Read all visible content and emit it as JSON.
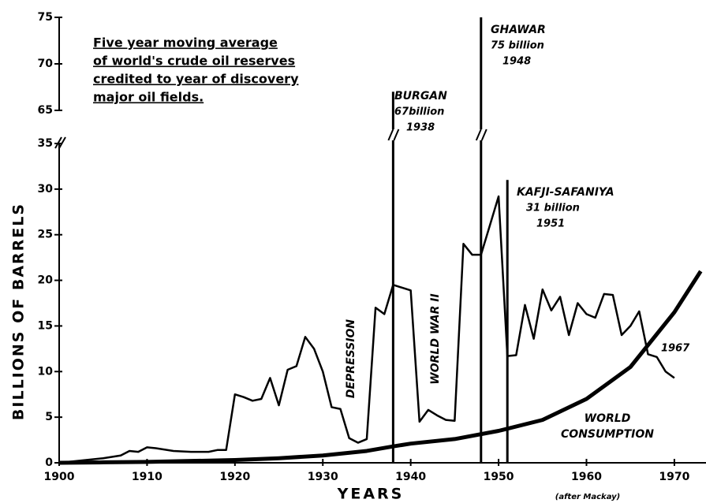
{
  "chart_data": {
    "type": "line",
    "title_lines": [
      "Five year moving average",
      "of world's crude oil reserves",
      "credited to year of discovery",
      "major oil fields."
    ],
    "xlabel": "YEARS",
    "ylabel": "BILLIONS OF BARRELS",
    "source": "(after Mackay)",
    "xlim": [
      1900,
      1973.6
    ],
    "xticks": [
      1900,
      1910,
      1920,
      1930,
      1940,
      1950,
      1960,
      1970
    ],
    "ylim": [
      0,
      35
    ],
    "yticks": [
      0,
      5,
      10,
      15,
      20,
      25,
      30,
      35
    ],
    "y_upper_lim": [
      65,
      75
    ],
    "y_upper_ticks": [
      65,
      70,
      75
    ],
    "color": "#000000",
    "series": [
      {
        "x": [
          1901,
          1905,
          1907,
          1908,
          1909,
          1910,
          1911,
          1913,
          1915,
          1917,
          1918,
          1919,
          1920,
          1921,
          1922,
          1923,
          1924,
          1925,
          1926,
          1927,
          1928,
          1929,
          1930,
          1931,
          1932,
          1933,
          1934,
          1935,
          1936,
          1937,
          1938,
          1939,
          1940,
          1941,
          1942,
          1943,
          1944,
          1945,
          1946,
          1947,
          1948,
          1949,
          1950,
          1951,
          1952,
          1953,
          1954,
          1955,
          1956,
          1957,
          1958,
          1959,
          1960,
          1961,
          1962,
          1963,
          1964,
          1965,
          1966,
          1967,
          1968,
          1969,
          1970
        ],
        "values": [
          0.1,
          0.5,
          0.8,
          1.3,
          1.2,
          1.7,
          1.6,
          1.3,
          1.2,
          1.2,
          1.4,
          1.4,
          7.5,
          7.2,
          6.8,
          7.0,
          9.3,
          6.3,
          10.2,
          10.6,
          13.8,
          12.5,
          10.0,
          6.1,
          5.9,
          2.7,
          2.2,
          2.6,
          17.0,
          16.3,
          19.5,
          19.2,
          18.9,
          4.5,
          5.8,
          5.2,
          4.7,
          4.6,
          24.0,
          22.8,
          22.8,
          26.0,
          29.2,
          11.7,
          11.8,
          17.3,
          13.6,
          19.0,
          16.7,
          18.2,
          14.0,
          17.5,
          16.3,
          15.9,
          18.5,
          18.4,
          14.0,
          15.0,
          16.6,
          11.9,
          11.6,
          10.0,
          9.3
        ]
      },
      {
        "name_lines": [
          "WORLD",
          "CONSUMPTION"
        ],
        "x": [
          1900,
          1905,
          1910,
          1915,
          1920,
          1925,
          1930,
          1935,
          1938,
          1940,
          1945,
          1950,
          1955,
          1960,
          1965,
          1970,
          1973
        ],
        "values": [
          0,
          0.05,
          0.1,
          0.2,
          0.3,
          0.5,
          0.8,
          1.3,
          1.8,
          2.1,
          2.6,
          3.5,
          4.7,
          7.0,
          10.5,
          16.5,
          21
        ]
      }
    ],
    "spikes": [
      {
        "name": "BURGAN",
        "x": 1938,
        "value": 67,
        "value_label": "67billion"
      },
      {
        "name": "GHAWAR",
        "x": 1948,
        "value": 75,
        "value_label": "75 billion"
      },
      {
        "name": "KAFJI-SAFANIYA",
        "x": 1951,
        "value": 31,
        "value_label": "31 billion"
      }
    ],
    "annotations": [
      "DEPRESSION",
      "WORLD WAR II",
      "1967"
    ]
  }
}
